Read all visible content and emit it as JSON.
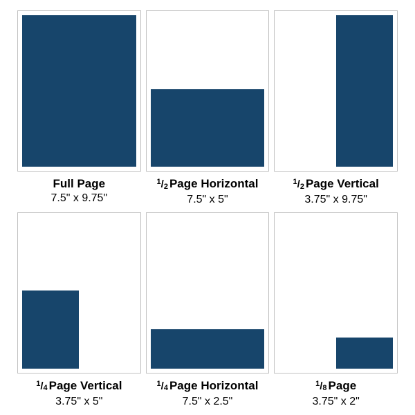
{
  "colors": {
    "ad": "#17456b",
    "page_border": "#c0c0c0",
    "page_bg": "#ffffff",
    "canvas_bg": "#ffffff",
    "text": "#000000"
  },
  "glyphs": {
    "fraction_slash": "/"
  },
  "page_spec": {
    "width_in": 7.5,
    "height_in": 9.75
  },
  "cells": [
    {
      "title": "Full Page",
      "size": "7.5\" x 9.75\"",
      "fraction": null,
      "ad": {
        "w_in": 7.5,
        "h_in": 9.75,
        "anchor": "fill"
      }
    },
    {
      "title": "Page Horizontal",
      "size": "7.5\" x 5\"",
      "fraction": {
        "num": "1",
        "den": "2"
      },
      "ad": {
        "w_in": 7.5,
        "h_in": 5,
        "anchor": "bottom-left"
      }
    },
    {
      "title": "Page Vertical",
      "size": "3.75\" x 9.75\"",
      "fraction": {
        "num": "1",
        "den": "2"
      },
      "ad": {
        "w_in": 3.75,
        "h_in": 9.75,
        "anchor": "top-right"
      }
    },
    {
      "title": "Page Vertical",
      "size": "3.75\" x 5\"",
      "fraction": {
        "num": "1",
        "den": "4"
      },
      "ad": {
        "w_in": 3.75,
        "h_in": 5,
        "anchor": "bottom-left"
      }
    },
    {
      "title": "Page Horizontal",
      "size": "7.5\" x 2.5\"",
      "fraction": {
        "num": "1",
        "den": "4"
      },
      "ad": {
        "w_in": 7.5,
        "h_in": 2.5,
        "anchor": "bottom-left"
      }
    },
    {
      "title": "Page",
      "size": "3.75\" x 2\"",
      "fraction": {
        "num": "1",
        "den": "8"
      },
      "ad": {
        "w_in": 3.75,
        "h_in": 2,
        "anchor": "bottom-right"
      }
    }
  ]
}
